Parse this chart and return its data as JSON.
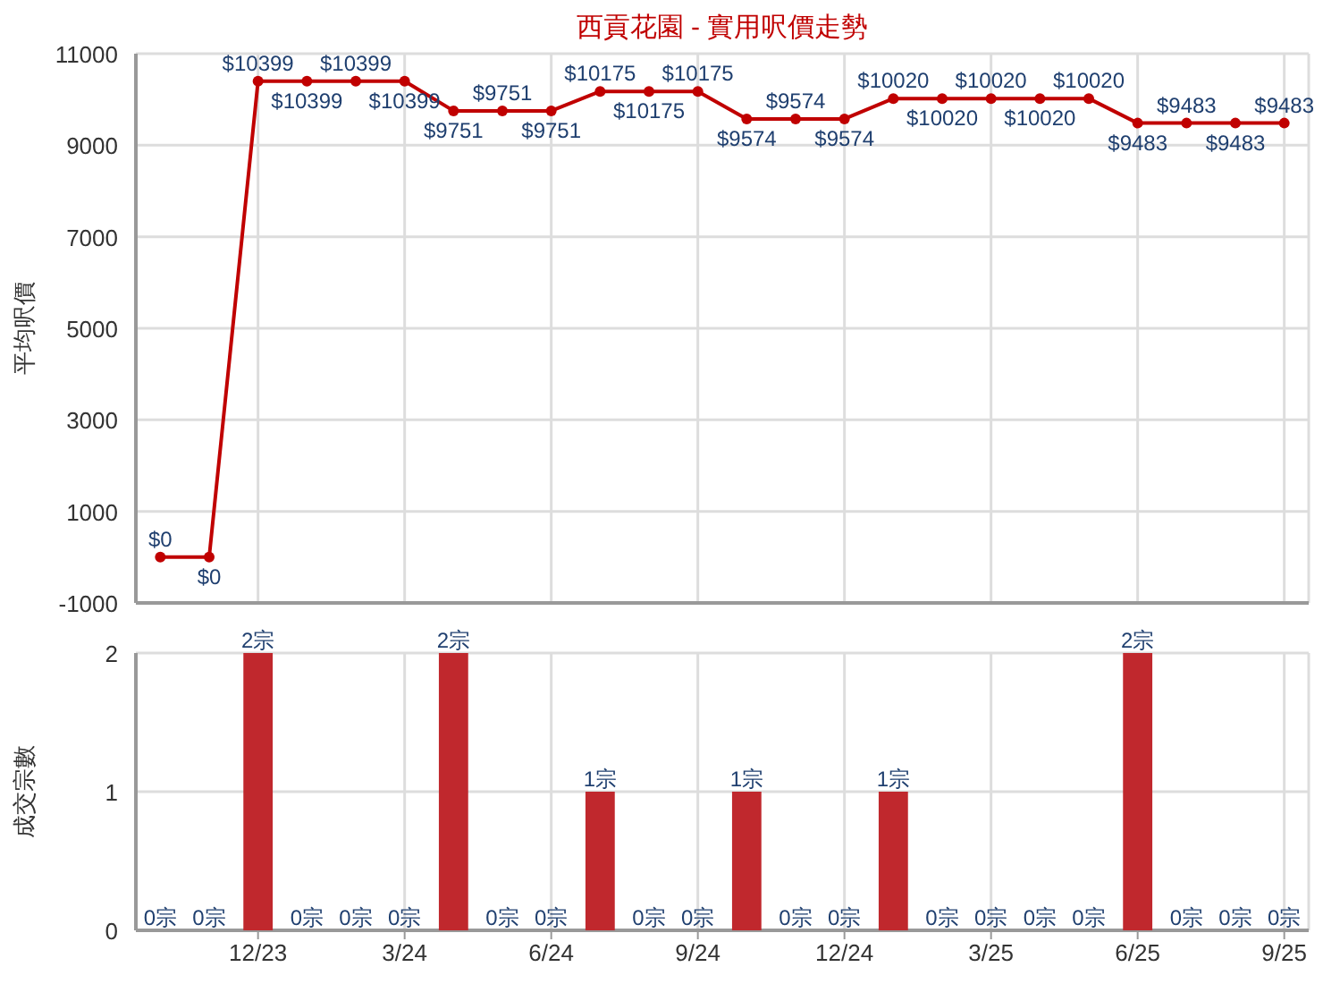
{
  "chart_data": [
    {
      "type": "line",
      "title": "西貢花園 - 實用呎價走勢",
      "ylabel": "平均呎價",
      "categories": [
        null,
        null,
        null,
        null,
        null,
        null,
        null,
        null,
        null,
        null,
        null,
        null,
        null,
        null,
        null,
        null,
        null,
        null,
        null,
        null,
        null,
        null,
        null,
        null
      ],
      "values": [
        0,
        0,
        10399,
        10399,
        10399,
        10399,
        9751,
        9751,
        9751,
        10175,
        10175,
        10175,
        9574,
        9574,
        9574,
        10020,
        10020,
        10020,
        10020,
        10020,
        9483,
        9483,
        9483,
        9483
      ],
      "value_labels": [
        "$0",
        "$0",
        "$10399",
        "$10399",
        "$10399",
        "$10399",
        "$9751",
        "$9751",
        "$9751",
        "$10175",
        "$10175",
        "$10175",
        "$9574",
        "$9574",
        "$9574",
        "$10020",
        "$10020",
        "$10020",
        "$10020",
        "$10020",
        "$9483",
        "$9483",
        "$9483",
        "$9483"
      ],
      "color": "#c00000",
      "marker": "circle",
      "line_style": "solid",
      "ylim": [
        -1000,
        11000
      ],
      "yticks": [
        -1000,
        1000,
        3000,
        5000,
        7000,
        9000,
        11000
      ],
      "grid": true,
      "tick_labels": "y"
    },
    {
      "type": "bar",
      "ylabel": "成交宗數",
      "categories": [
        null,
        null,
        "12/23",
        null,
        null,
        "3/24",
        null,
        null,
        "6/24",
        null,
        null,
        "9/24",
        null,
        null,
        "12/24",
        null,
        null,
        "3/25",
        null,
        null,
        "6/25",
        null,
        null,
        "9/25"
      ],
      "values": [
        0,
        0,
        2,
        0,
        0,
        0,
        2,
        0,
        0,
        1,
        0,
        0,
        1,
        0,
        0,
        1,
        0,
        0,
        0,
        0,
        2,
        0,
        0,
        0
      ],
      "value_labels": [
        "0宗",
        "0宗",
        "2宗",
        "0宗",
        "0宗",
        "0宗",
        "2宗",
        "0宗",
        "0宗",
        "1宗",
        "0宗",
        "0宗",
        "1宗",
        "0宗",
        "0宗",
        "1宗",
        "0宗",
        "0宗",
        "0宗",
        "0宗",
        "2宗",
        "0宗",
        "0宗",
        "0宗"
      ],
      "color": "#c0282d",
      "ylim": [
        0,
        2
      ],
      "yticks": [
        0,
        1,
        2
      ],
      "grid": true
    }
  ]
}
